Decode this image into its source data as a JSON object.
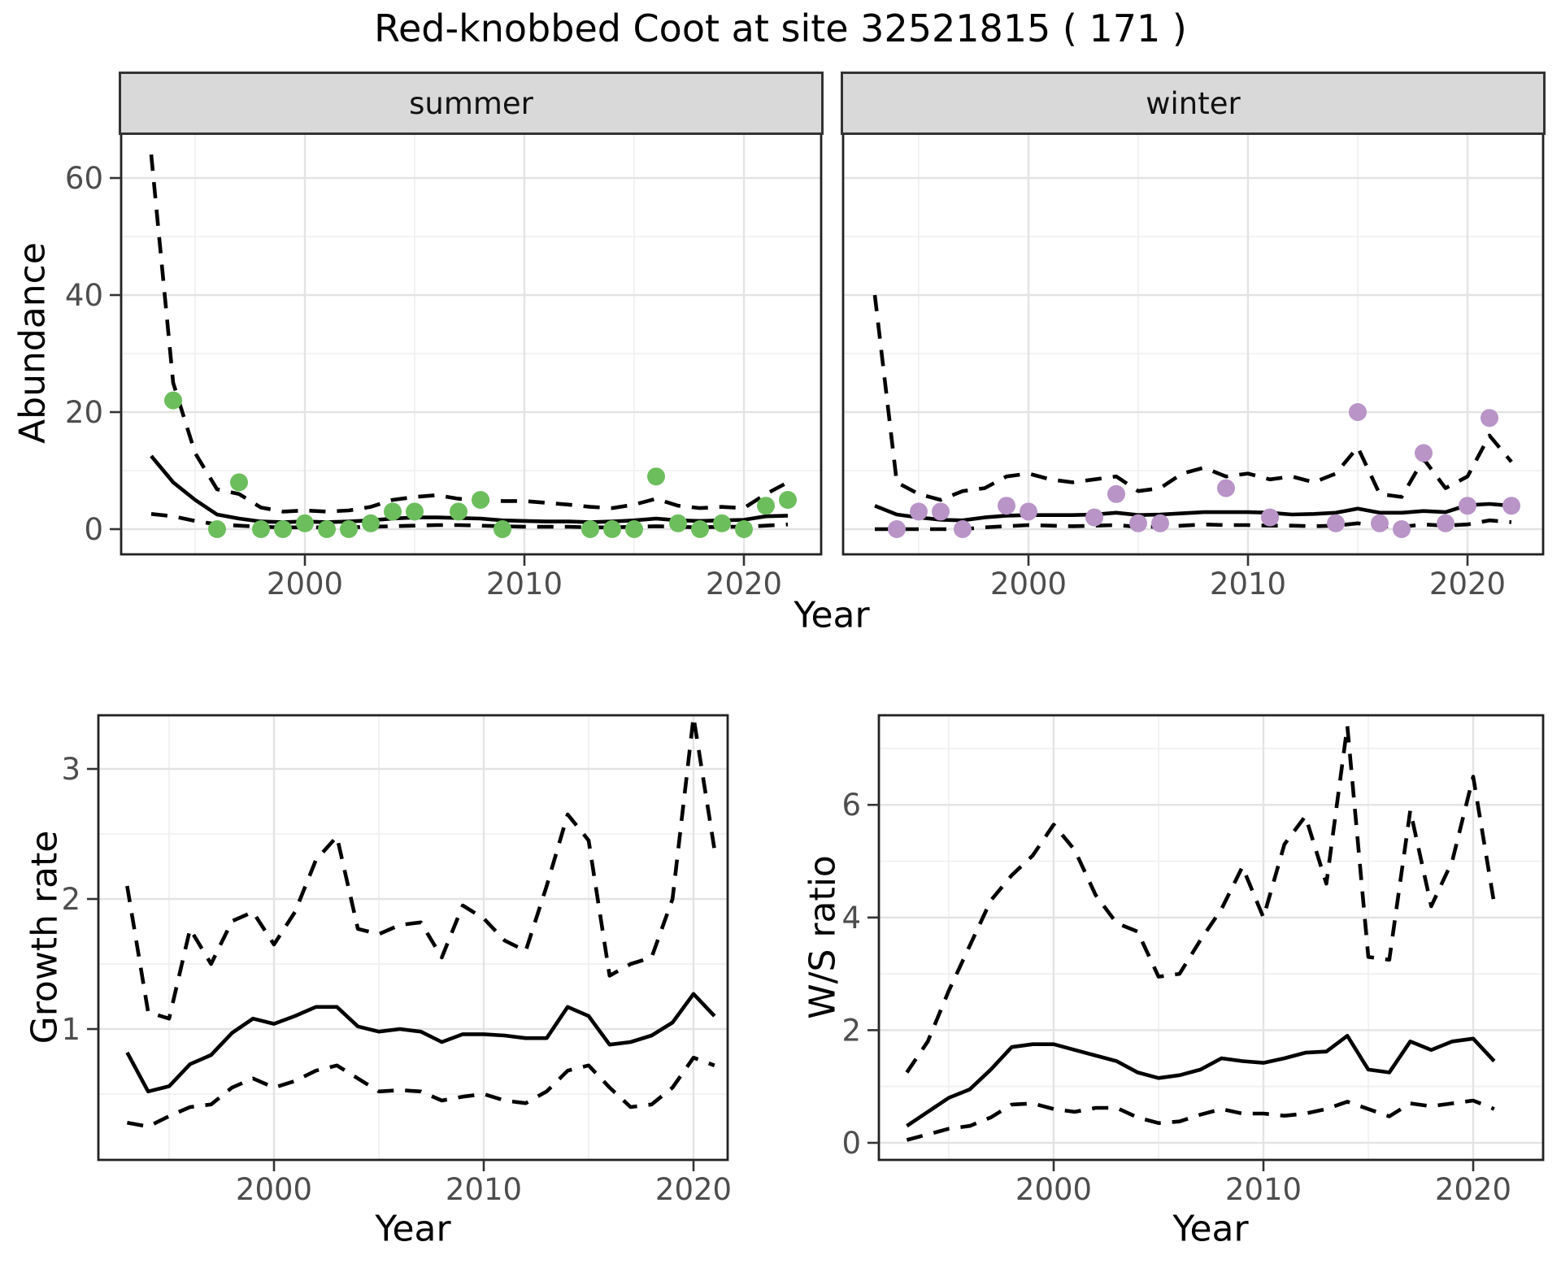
{
  "title": "Red-knobbed Coot at site 32521815 ( 171 )",
  "facets": [
    {
      "label": "summer"
    },
    {
      "label": "winter"
    }
  ],
  "axis_labels": {
    "abundance": "Abundance",
    "year": "Year",
    "growth": "Growth rate",
    "ws": "W/S ratio"
  },
  "colors": {
    "summer_point": "#6cbe5c",
    "winter_point": "#b894c7",
    "line": "#000000",
    "strip_bg": "#d9d9d9",
    "strip_border": "#333333",
    "panel_border": "#222222",
    "grid_major": "#e3e3e3",
    "grid_minor": "#f0f0f0",
    "tick_label": "#4d4d4d",
    "tick_mark": "#333333"
  },
  "chart_data": [
    {
      "id": "summer",
      "type": "line",
      "facet": "summer",
      "title": "summer",
      "xlabel": "Year",
      "ylabel": "Abundance",
      "x_ticks": [
        2000,
        2010,
        2020
      ],
      "x_minor": [
        1995,
        2005,
        2015
      ],
      "y_ticks": [
        0,
        20,
        40,
        60
      ],
      "y_minor": [
        10,
        30,
        50
      ],
      "xlim": [
        1991.6,
        2023.5
      ],
      "ylim": [
        -4.3,
        67.8
      ],
      "legend": "none",
      "years": [
        1993,
        1994,
        1995,
        1996,
        1997,
        1998,
        1999,
        2000,
        2001,
        2002,
        2003,
        2004,
        2005,
        2006,
        2007,
        2008,
        2009,
        2010,
        2011,
        2012,
        2013,
        2014,
        2015,
        2016,
        2017,
        2018,
        2019,
        2020,
        2021,
        2022
      ],
      "series": [
        {
          "name": "mean",
          "style": "solid",
          "values": [
            12.5,
            8,
            5,
            2.5,
            1.8,
            1.3,
            1.2,
            1.3,
            1.2,
            1.3,
            1.5,
            1.8,
            2,
            2,
            1.9,
            1.8,
            1.5,
            1.4,
            1.3,
            1.3,
            1.2,
            1.3,
            1.5,
            1.8,
            1.5,
            1.4,
            1.5,
            1.6,
            2.2,
            2.3
          ]
        },
        {
          "name": "upper_ci",
          "style": "dashed",
          "values": [
            64,
            25,
            13,
            6.8,
            6,
            3.7,
            3,
            3.2,
            3,
            3.2,
            3.8,
            5,
            5.5,
            5.8,
            5.2,
            5,
            4.8,
            4.8,
            4.5,
            4.2,
            3.8,
            3.6,
            4.2,
            5.2,
            4,
            3.6,
            3.8,
            3.6,
            6,
            8
          ]
        },
        {
          "name": "lower_ci",
          "style": "dashed",
          "values": [
            2.6,
            2.2,
            1.4,
            0.8,
            0.6,
            0.4,
            0.3,
            0.3,
            0.3,
            0.3,
            0.4,
            0.5,
            0.6,
            0.7,
            0.7,
            0.6,
            0.5,
            0.4,
            0.4,
            0.4,
            0.3,
            0.3,
            0.4,
            0.5,
            0.4,
            0.3,
            0.4,
            0.4,
            0.6,
            0.8
          ]
        }
      ],
      "points": [
        [
          1994,
          22
        ],
        [
          1996,
          0
        ],
        [
          1997,
          8
        ],
        [
          1998,
          0
        ],
        [
          1999,
          0
        ],
        [
          2000,
          1
        ],
        [
          2001,
          0
        ],
        [
          2002,
          0
        ],
        [
          2003,
          1
        ],
        [
          2004,
          3
        ],
        [
          2005,
          3
        ],
        [
          2007,
          3
        ],
        [
          2008,
          5
        ],
        [
          2009,
          0
        ],
        [
          2013,
          0
        ],
        [
          2014,
          0
        ],
        [
          2015,
          0
        ],
        [
          2016,
          9
        ],
        [
          2017,
          1
        ],
        [
          2018,
          0
        ],
        [
          2019,
          1
        ],
        [
          2020,
          0
        ],
        [
          2021,
          4
        ],
        [
          2022,
          5
        ]
      ],
      "point_color": "#6cbe5c"
    },
    {
      "id": "winter",
      "type": "line",
      "facet": "winter",
      "title": "winter",
      "xlabel": "Year",
      "ylabel": "Abundance",
      "x_ticks": [
        2000,
        2010,
        2020
      ],
      "x_minor": [
        1995,
        2005,
        2015
      ],
      "y_ticks": [
        0,
        20,
        40,
        60
      ],
      "y_minor": [
        10,
        30,
        50
      ],
      "xlim": [
        1991.6,
        2023.5
      ],
      "ylim": [
        -4.3,
        67.8
      ],
      "legend": "none",
      "years": [
        1993,
        1994,
        1995,
        1996,
        1997,
        1998,
        1999,
        2000,
        2001,
        2002,
        2003,
        2004,
        2005,
        2006,
        2007,
        2008,
        2009,
        2010,
        2011,
        2012,
        2013,
        2014,
        2015,
        2016,
        2017,
        2018,
        2019,
        2020,
        2021,
        2022
      ],
      "series": [
        {
          "name": "mean",
          "style": "solid",
          "values": [
            4,
            2.5,
            2,
            1.6,
            1.5,
            2,
            2.3,
            2.4,
            2.4,
            2.4,
            2.5,
            2.8,
            2.4,
            2.5,
            2.7,
            2.9,
            2.9,
            2.9,
            2.8,
            2.5,
            2.6,
            2.8,
            3.5,
            2.8,
            2.8,
            3.1,
            2.9,
            4.1,
            4.3,
            4
          ]
        },
        {
          "name": "upper_ci",
          "style": "dashed",
          "values": [
            40,
            8,
            6,
            5,
            6.5,
            7,
            9,
            9.5,
            8.5,
            8,
            8.5,
            9,
            6.5,
            7,
            9.5,
            10.5,
            9,
            9.5,
            8.5,
            9,
            8,
            9.5,
            14,
            6,
            5.5,
            12,
            7,
            9,
            16,
            11.5
          ]
        },
        {
          "name": "lower_ci",
          "style": "dashed",
          "values": [
            0,
            0,
            0,
            0,
            0,
            0.3,
            0.5,
            0.7,
            0.6,
            0.5,
            0.6,
            0.7,
            0.4,
            0.4,
            0.6,
            0.8,
            0.7,
            0.7,
            0.6,
            0.6,
            0.5,
            0.6,
            1,
            0.5,
            0.4,
            0.8,
            0.6,
            0.8,
            1.5,
            1.2
          ]
        }
      ],
      "points": [
        [
          1994,
          0
        ],
        [
          1995,
          3
        ],
        [
          1996,
          3
        ],
        [
          1997,
          0
        ],
        [
          1999,
          4
        ],
        [
          2000,
          3
        ],
        [
          2003,
          2
        ],
        [
          2004,
          6
        ],
        [
          2005,
          1
        ],
        [
          2006,
          1
        ],
        [
          2009,
          7
        ],
        [
          2011,
          2
        ],
        [
          2014,
          1
        ],
        [
          2015,
          20
        ],
        [
          2016,
          1
        ],
        [
          2017,
          0
        ],
        [
          2018,
          13
        ],
        [
          2019,
          1
        ],
        [
          2020,
          4
        ],
        [
          2021,
          19
        ],
        [
          2022,
          4
        ]
      ],
      "point_color": "#b894c7"
    },
    {
      "id": "growth",
      "type": "line",
      "facet": "none",
      "title": "Growth rate",
      "xlabel": "Year",
      "ylabel": "Growth rate",
      "x_ticks": [
        2000,
        2010,
        2020
      ],
      "x_minor": [
        1995,
        2005,
        2015
      ],
      "y_ticks": [
        1,
        2,
        3
      ],
      "y_minor": [
        0.5,
        1.5,
        2.5
      ],
      "xlim": [
        1991.6,
        2021.6
      ],
      "ylim": [
        0,
        3.41
      ],
      "legend": "none",
      "years": [
        1993,
        1994,
        1995,
        1996,
        1997,
        1998,
        1999,
        2000,
        2001,
        2002,
        2003,
        2004,
        2005,
        2006,
        2007,
        2008,
        2009,
        2010,
        2011,
        2012,
        2013,
        2014,
        2015,
        2016,
        2017,
        2018,
        2019,
        2020,
        2021
      ],
      "series": [
        {
          "name": "mean",
          "style": "solid",
          "values": [
            0.82,
            0.52,
            0.56,
            0.73,
            0.8,
            0.97,
            1.08,
            1.04,
            1.1,
            1.17,
            1.17,
            1.02,
            0.98,
            1.0,
            0.98,
            0.9,
            0.96,
            0.96,
            0.95,
            0.93,
            0.93,
            1.17,
            1.1,
            0.88,
            0.9,
            0.95,
            1.05,
            1.27,
            1.1
          ]
        },
        {
          "name": "upper_ci",
          "style": "dashed",
          "values": [
            2.1,
            1.13,
            1.08,
            1.77,
            1.5,
            1.83,
            1.9,
            1.65,
            1.9,
            2.3,
            2.48,
            1.77,
            1.73,
            1.8,
            1.82,
            1.55,
            1.95,
            1.85,
            1.68,
            1.6,
            2.1,
            2.65,
            2.45,
            1.41,
            1.5,
            1.55,
            2.0,
            3.4,
            2.38
          ]
        },
        {
          "name": "lower_ci",
          "style": "dashed",
          "values": [
            0.28,
            0.25,
            0.33,
            0.4,
            0.42,
            0.55,
            0.62,
            0.55,
            0.6,
            0.68,
            0.72,
            0.62,
            0.52,
            0.53,
            0.52,
            0.45,
            0.48,
            0.5,
            0.45,
            0.43,
            0.52,
            0.68,
            0.72,
            0.55,
            0.4,
            0.42,
            0.55,
            0.78,
            0.72
          ]
        }
      ],
      "points": [],
      "point_color": "#000000"
    },
    {
      "id": "ws",
      "type": "line",
      "facet": "none",
      "title": "W/S ratio",
      "xlabel": "Year",
      "ylabel": "W/S ratio",
      "x_ticks": [
        2000,
        2010,
        2020
      ],
      "x_minor": [
        1995,
        2005,
        2015
      ],
      "y_ticks": [
        0,
        2,
        4,
        6
      ],
      "y_minor": [
        1,
        3,
        5,
        7
      ],
      "xlim": [
        1991.7,
        2023.3
      ],
      "ylim": [
        -0.3,
        7.6
      ],
      "legend": "none",
      "years": [
        1993,
        1994,
        1995,
        1996,
        1997,
        1998,
        1999,
        2000,
        2001,
        2002,
        2003,
        2004,
        2005,
        2006,
        2007,
        2008,
        2009,
        2010,
        2011,
        2012,
        2013,
        2014,
        2015,
        2016,
        2017,
        2018,
        2019,
        2020,
        2021
      ],
      "series": [
        {
          "name": "mean",
          "style": "solid",
          "values": [
            0.3,
            0.55,
            0.8,
            0.95,
            1.3,
            1.7,
            1.75,
            1.75,
            1.65,
            1.55,
            1.45,
            1.25,
            1.15,
            1.2,
            1.3,
            1.5,
            1.45,
            1.42,
            1.5,
            1.6,
            1.62,
            1.9,
            1.3,
            1.25,
            1.8,
            1.65,
            1.8,
            1.85,
            1.45
          ]
        },
        {
          "name": "upper_ci",
          "style": "dashed",
          "values": [
            1.25,
            1.8,
            2.7,
            3.5,
            4.3,
            4.75,
            5.1,
            5.65,
            5.2,
            4.4,
            3.9,
            3.75,
            2.95,
            3.0,
            3.6,
            4.15,
            4.9,
            4.0,
            5.3,
            5.8,
            4.6,
            7.4,
            3.3,
            3.25,
            5.9,
            4.2,
            5.0,
            6.5,
            4.25
          ]
        },
        {
          "name": "lower_ci",
          "style": "dashed",
          "values": [
            0.05,
            0.15,
            0.25,
            0.3,
            0.45,
            0.68,
            0.7,
            0.6,
            0.55,
            0.62,
            0.62,
            0.45,
            0.35,
            0.38,
            0.5,
            0.6,
            0.52,
            0.52,
            0.48,
            0.52,
            0.6,
            0.73,
            0.6,
            0.47,
            0.7,
            0.65,
            0.7,
            0.75,
            0.6
          ]
        }
      ],
      "points": [],
      "point_color": "#000000"
    }
  ]
}
